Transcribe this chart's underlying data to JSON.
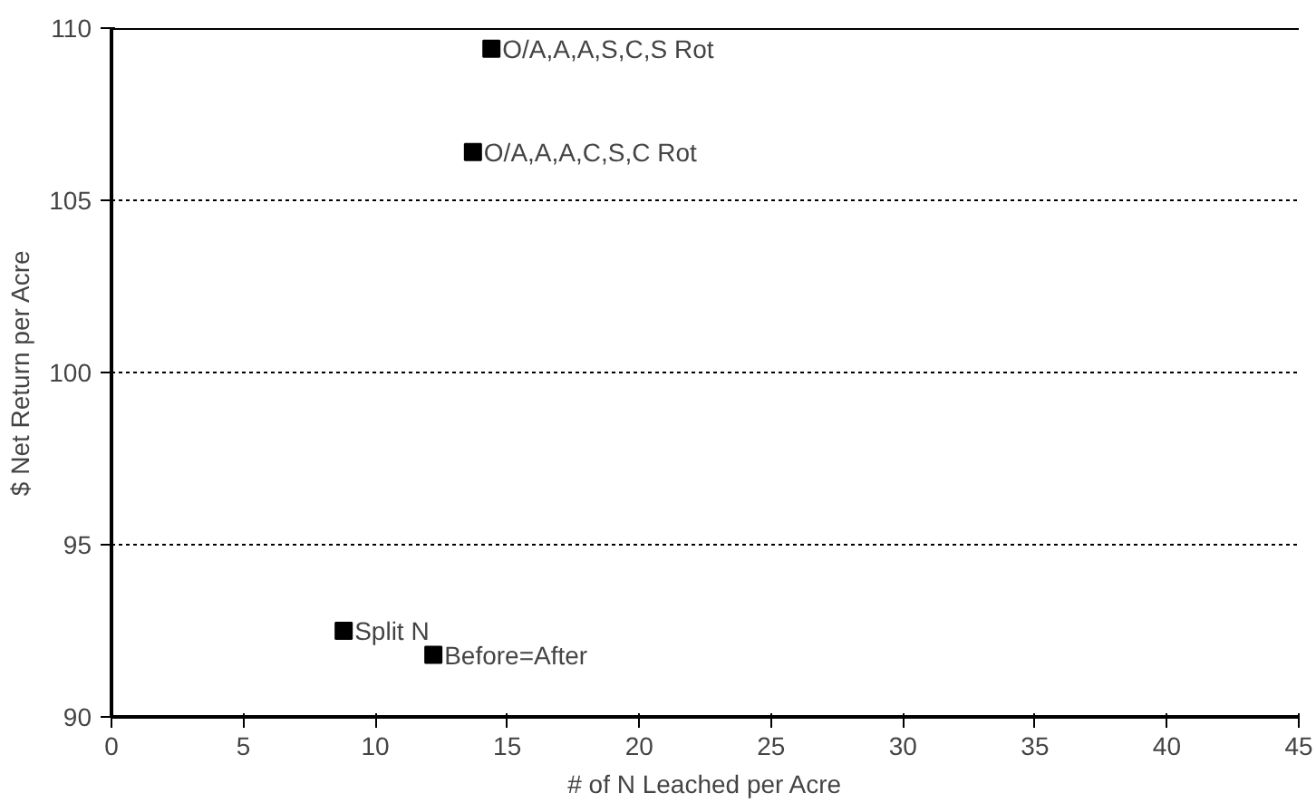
{
  "chart_data": {
    "type": "scatter",
    "xlabel": "# of N Leached per Acre",
    "ylabel": "$ Net Return per Acre",
    "x": [
      14.4,
      13.7,
      8.8,
      12.2
    ],
    "series": [
      {
        "color": "#000000",
        "values": [
          109.4,
          106.4,
          92.5,
          91.8
        ]
      }
    ],
    "annotations": [
      {
        "text": "O/A,A,A,S,C,S Rot",
        "x": 14.4,
        "y": 109.4
      },
      {
        "text": "O/A,A,A,C,S,C Rot",
        "x": 13.7,
        "y": 106.4
      },
      {
        "text": "Split N",
        "x": 8.8,
        "y": 92.5
      },
      {
        "text": "Before=After",
        "x": 12.2,
        "y": 91.8
      }
    ],
    "xlim": [
      0,
      45
    ],
    "ylim": [
      90,
      110
    ],
    "xticks": [
      0,
      5,
      10,
      15,
      20,
      25,
      30,
      35,
      40,
      45
    ],
    "yticks": [
      90,
      95,
      100,
      105,
      110
    ],
    "grid": "y",
    "marker": "square"
  }
}
